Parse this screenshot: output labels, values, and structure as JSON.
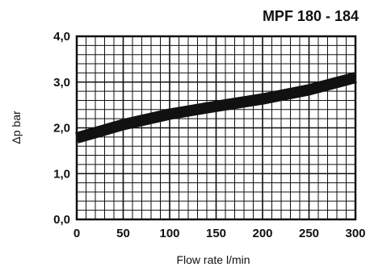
{
  "chart_data": {
    "type": "line",
    "title": "MPF 180 - 184",
    "xlabel": "Flow rate l/min",
    "ylabel": "Δp bar",
    "xlim": [
      0,
      300
    ],
    "ylim": [
      0,
      4
    ],
    "grid": true,
    "x_ticks": [
      0,
      50,
      100,
      150,
      200,
      250,
      300
    ],
    "x_tick_labels": [
      "0",
      "50",
      "100",
      "150",
      "200",
      "250",
      "300"
    ],
    "y_ticks": [
      0,
      1,
      2,
      3,
      4
    ],
    "y_tick_labels": [
      "0,0",
      "1,0",
      "2,0",
      "3,0",
      "4,0"
    ],
    "series": [
      {
        "x": [
          0,
          50,
          100,
          150,
          200,
          250,
          300
        ],
        "values": [
          1.78,
          2.07,
          2.3,
          2.47,
          2.63,
          2.83,
          3.1
        ]
      }
    ],
    "colors": {
      "line": "#111111",
      "grid": "#111111",
      "background": "#ffffff"
    }
  }
}
